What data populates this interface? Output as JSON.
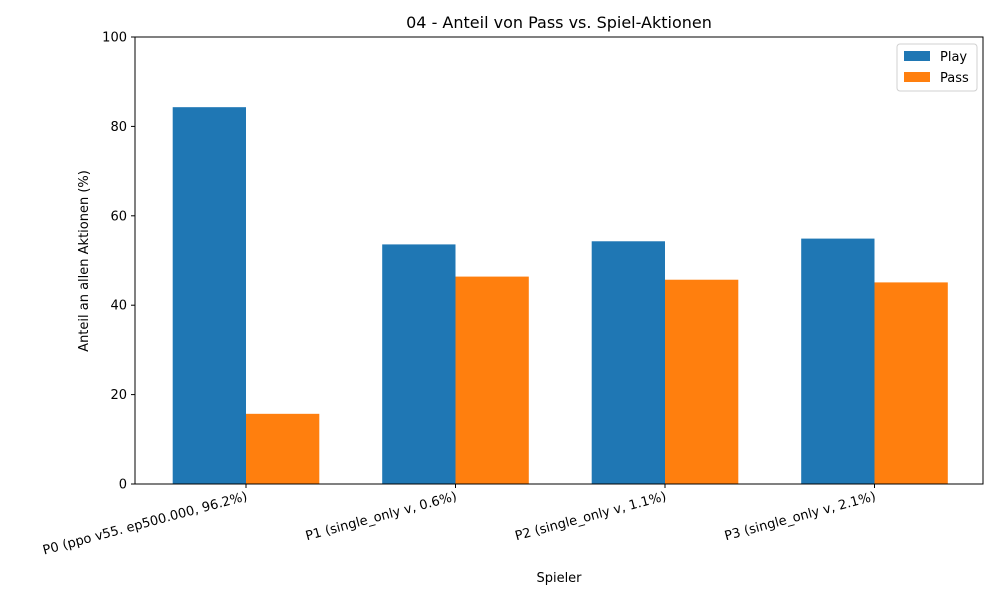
{
  "chart_data": {
    "type": "bar",
    "title": "04 - Anteil von Pass vs. Spiel-Aktionen",
    "xlabel": "Spieler",
    "ylabel": "Anteil an allen Aktionen (%)",
    "ylim": [
      0,
      100
    ],
    "yticks": [
      "0",
      "20",
      "40",
      "60",
      "80",
      "100"
    ],
    "categories": [
      "P0 (ppo v55. ep500.000, 96.2%)",
      "P1 (single_only v, 0.6%)",
      "P2 (single_only v, 1.1%)",
      "P3 (single_only v, 2.1%)"
    ],
    "series": [
      {
        "name": "Play",
        "color": "#1f77b4",
        "values": [
          84.3,
          53.6,
          54.3,
          54.9
        ]
      },
      {
        "name": "Pass",
        "color": "#ff7f0e",
        "values": [
          15.7,
          46.4,
          45.7,
          45.1
        ]
      }
    ],
    "grid": false,
    "legend": "top-right"
  }
}
